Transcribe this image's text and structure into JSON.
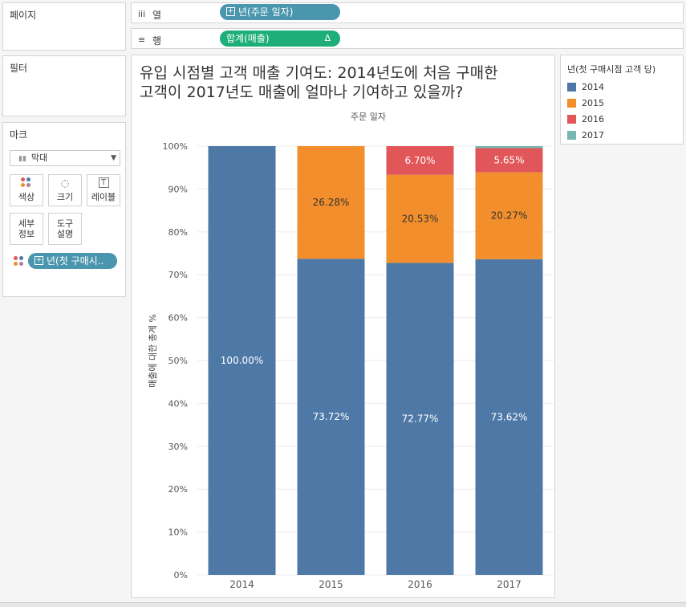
{
  "shelves": {
    "pages_label": "페이지",
    "columns": {
      "icon": "iii",
      "label": "열",
      "pill": "년(주문 일자)"
    },
    "rows": {
      "icon": "≡",
      "label": "행",
      "pill": "합계(매출)",
      "pill_suffix": "Δ"
    }
  },
  "filters": {
    "label": "필터"
  },
  "marks": {
    "label": "마크",
    "type": "막대",
    "buttons": {
      "color": "색상",
      "size": "크기",
      "label": "레이블",
      "detail_line1": "세부",
      "detail_line2": "정보",
      "tooltip_line1": "도구",
      "tooltip_line2": "설명"
    },
    "color_pill": "년(첫 구매시.."
  },
  "legend": {
    "title": "년(첫 구매시점 고객 당)",
    "items": [
      {
        "label": "2014",
        "color": "#4e79a7"
      },
      {
        "label": "2015",
        "color": "#f28e2b"
      },
      {
        "label": "2016",
        "color": "#e15759"
      },
      {
        "label": "2017",
        "color": "#76b7b2"
      }
    ]
  },
  "chart_data": {
    "type": "bar",
    "stacked": true,
    "title_line1": "유입 시점별 고객 매출 기여도: 2014년도에 처음 구매한",
    "title_line2": "고객이 2017년도 매출에 얼마나 기여하고 있을까?",
    "column_header": "주문 일자",
    "ylabel": "매출에 대한 총계 %",
    "ylim": [
      0,
      100
    ],
    "yticks": [
      "0%",
      "10%",
      "20%",
      "30%",
      "40%",
      "50%",
      "60%",
      "70%",
      "80%",
      "90%",
      "100%"
    ],
    "categories": [
      "2014",
      "2015",
      "2016",
      "2017"
    ],
    "series": [
      {
        "name": "2014",
        "color": "#4e79a7",
        "values": [
          100.0,
          73.72,
          72.77,
          73.62
        ],
        "labels": [
          "100.00%",
          "73.72%",
          "72.77%",
          "73.62%"
        ]
      },
      {
        "name": "2015",
        "color": "#f28e2b",
        "values": [
          0,
          26.28,
          20.53,
          20.27
        ],
        "labels": [
          "",
          "26.28%",
          "20.53%",
          "20.27%"
        ]
      },
      {
        "name": "2016",
        "color": "#e15759",
        "values": [
          0,
          0,
          6.7,
          5.65
        ],
        "labels": [
          "",
          "",
          "6.70%",
          "5.65%"
        ]
      },
      {
        "name": "2017",
        "color": "#76b7b2",
        "values": [
          0,
          0,
          0,
          0.46
        ],
        "labels": [
          "",
          "",
          "",
          ""
        ]
      }
    ]
  }
}
